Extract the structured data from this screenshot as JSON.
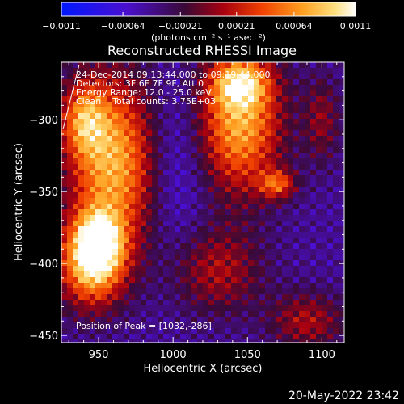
{
  "chart_data": {
    "type": "heatmap",
    "title": "Reconstructed RHESSI Image",
    "xlabel": "Heliocentric X (arcsec)",
    "ylabel": "Heliocentric Y (arcsec)",
    "xlim": [
      925,
      1115
    ],
    "ylim": [
      -455,
      -260
    ],
    "x_ticks": [
      950,
      1000,
      1050,
      1100
    ],
    "x_tick_labels": [
      "950",
      "1000",
      "1050",
      "1100"
    ],
    "y_ticks": [
      -300,
      -350,
      -400,
      -450
    ],
    "y_tick_labels": [
      "−300",
      "−350",
      "−400",
      "−450"
    ],
    "colorbar": {
      "min": -0.0011,
      "max": 0.0011,
      "ticks": [
        -0.0011,
        -0.00064,
        -0.00021,
        0.00021,
        0.00064,
        0.0011
      ],
      "tick_labels": [
        "−0.0011",
        "−0.00064",
        "−0.00021",
        "0.00021",
        "0.00064",
        "0.0011"
      ],
      "unit_label": "(photons cm⁻² s⁻¹ asec⁻²)",
      "colormap": "blue-purple-red-orange-yellow-white"
    },
    "annotations": [
      "24-Dec-2014 09:13:44.000 to 09:19:44.000",
      "Detectors: 3F 6F 7F 9F, Att 0",
      "Energy Range: 12.0 - 25.0 keV",
      "Clean    Total counts: 3.75E+03"
    ],
    "peak_text": "Position of Peak = [1032,-286]",
    "peak_position": [
      1032,
      -286
    ],
    "grid": false
  },
  "footer": {
    "timestamp": "20-May-2022 23:42"
  }
}
